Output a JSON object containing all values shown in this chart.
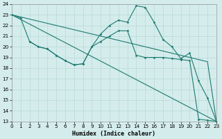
{
  "xlabel": "Humidex (Indice chaleur)",
  "xlim": [
    0,
    23
  ],
  "ylim": [
    13,
    24
  ],
  "yticks": [
    13,
    14,
    15,
    16,
    17,
    18,
    19,
    20,
    21,
    22,
    23,
    24
  ],
  "xticks": [
    0,
    1,
    2,
    3,
    4,
    5,
    6,
    7,
    8,
    9,
    10,
    11,
    12,
    13,
    14,
    15,
    16,
    17,
    18,
    19,
    20,
    21,
    22,
    23
  ],
  "bg_color": "#d4ecec",
  "grid_color": "#b8d8d8",
  "line_color": "#1e7a70",
  "line1_x": [
    0,
    23
  ],
  "line1_y": [
    23.0,
    13.0
  ],
  "line2_x": [
    0,
    1,
    2,
    3,
    4,
    5,
    6,
    7,
    8,
    9,
    10,
    11,
    12,
    13,
    14,
    15,
    16,
    17,
    18,
    19,
    20,
    21,
    22,
    23
  ],
  "line2_y": [
    23.0,
    22.7,
    20.5,
    20.0,
    19.8,
    19.2,
    18.7,
    18.3,
    18.4,
    20.0,
    21.2,
    22.0,
    22.5,
    22.3,
    23.85,
    23.7,
    22.3,
    20.7,
    20.0,
    18.9,
    19.4,
    16.8,
    15.2,
    13.0
  ],
  "line3_x": [
    2,
    3,
    4,
    5,
    6,
    7,
    8,
    9,
    10,
    11,
    12,
    13,
    14,
    15,
    16,
    17,
    18,
    19,
    20,
    21,
    22,
    23
  ],
  "line3_y": [
    20.5,
    20.0,
    19.8,
    19.2,
    18.7,
    18.3,
    18.4,
    20.0,
    20.5,
    21.0,
    21.5,
    21.5,
    19.2,
    19.0,
    19.0,
    19.0,
    18.9,
    18.8,
    18.7,
    13.2,
    13.1,
    13.0
  ],
  "line4_x": [
    0,
    1,
    2,
    3,
    4,
    5,
    6,
    7,
    8,
    9,
    10,
    11,
    12,
    13,
    14,
    15,
    16,
    17,
    18,
    19,
    20,
    21,
    22,
    23
  ],
  "line4_y": [
    23.0,
    22.8,
    22.6,
    22.4,
    22.2,
    22.0,
    21.8,
    21.6,
    21.4,
    21.2,
    21.0,
    20.8,
    20.6,
    20.4,
    20.2,
    20.0,
    19.8,
    19.6,
    19.4,
    19.2,
    19.0,
    18.8,
    18.6,
    13.0
  ]
}
